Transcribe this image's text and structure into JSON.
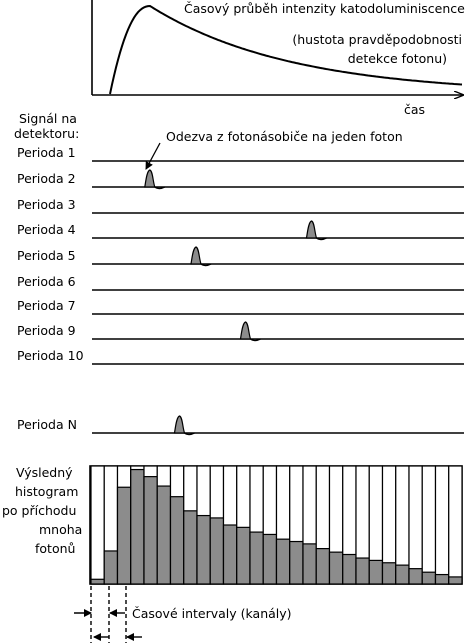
{
  "curve": {
    "title_line1": "Časový průběh intenzity katodoluminiscence",
    "title_line2": "(hustota pravděpodobnosti",
    "title_line3": "detekce fotonu)",
    "axis_label": "čas"
  },
  "detector": {
    "label_line1": "Signál na",
    "label_line2": "detektoru:",
    "response_annotation": "Odezva z fotonásobiče na jeden foton"
  },
  "periods": [
    {
      "label": "Perioda 1",
      "pulse_time": null
    },
    {
      "label": "Perioda 2",
      "pulse_time": 0.06
    },
    {
      "label": "Perioda 3",
      "pulse_time": null
    },
    {
      "label": "Perioda 4",
      "pulse_time": 0.55
    },
    {
      "label": "Perioda 5",
      "pulse_time": 0.2
    },
    {
      "label": "Perioda 6",
      "pulse_time": null
    },
    {
      "label": "Perioda 7",
      "pulse_time": null
    },
    {
      "label": "Perioda 9",
      "pulse_time": 0.35
    },
    {
      "label": "Perioda 10",
      "pulse_time": null
    },
    {
      "label": "Perioda N",
      "pulse_time": 0.15
    }
  ],
  "histogram": {
    "label_lines": [
      "Výsledný",
      "histogram",
      "po příchodu",
      "mnoha",
      "fotonů"
    ],
    "intervals_label": "Časové intervaly (kanály)",
    "values": [
      0.04,
      0.28,
      0.82,
      0.97,
      0.91,
      0.83,
      0.74,
      0.62,
      0.58,
      0.56,
      0.5,
      0.48,
      0.44,
      0.42,
      0.38,
      0.36,
      0.34,
      0.3,
      0.27,
      0.25,
      0.22,
      0.2,
      0.18,
      0.16,
      0.13,
      0.1,
      0.08,
      0.06
    ]
  },
  "colors": {
    "bar_fill": "#8c8c8c",
    "line": "#000000"
  }
}
